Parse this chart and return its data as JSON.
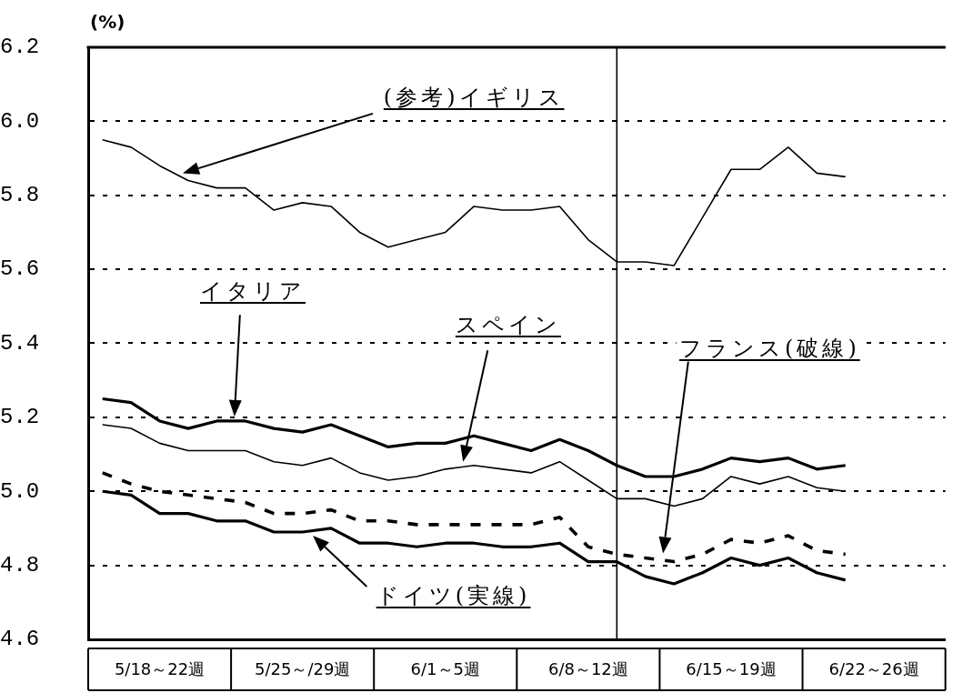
{
  "chart_data": {
    "type": "line",
    "ylabel": "(%)",
    "categories": [
      null,
      null,
      "5/18～22週",
      null,
      null,
      null,
      null,
      "5/25～/29週",
      null,
      null,
      null,
      null,
      "6/1～5週",
      null,
      null,
      null,
      null,
      "6/8～12週",
      null,
      null,
      null,
      null,
      "6/15～19週",
      null,
      null,
      null,
      null,
      "6/22～26週",
      null,
      null
    ],
    "ylim": [
      4.6,
      6.2
    ],
    "yticks": [
      {
        "value": 4.6,
        "label": "4.6"
      },
      {
        "value": 4.8,
        "label": "4.8"
      },
      {
        "value": 5,
        "label": "5.0"
      },
      {
        "value": 5.2,
        "label": "5.2"
      },
      {
        "value": 5.4,
        "label": "5.4"
      },
      {
        "value": 5.6,
        "label": "5.6"
      },
      {
        "value": 5.8,
        "label": "5.8"
      },
      {
        "value": 6,
        "label": "6.0"
      },
      {
        "value": 6.2,
        "label": "6.2"
      }
    ],
    "grid": "y",
    "marker": "none",
    "series": [
      {
        "name": "(参考)イギリス",
        "color": "#000000",
        "values": [
          5.95,
          5.93,
          5.88,
          5.84,
          5.82,
          5.82,
          5.76,
          5.78,
          5.77,
          5.7,
          5.66,
          5.68,
          5.7,
          5.77,
          5.76,
          5.76,
          5.77,
          5.68,
          5.62,
          5.62,
          5.61,
          5.74,
          5.87,
          5.87,
          5.93,
          5.86,
          5.85,
          null,
          null,
          null
        ]
      },
      {
        "name": "イタリア",
        "color": "#000000",
        "values": [
          5.25,
          5.24,
          5.19,
          5.17,
          5.19,
          5.19,
          5.17,
          5.16,
          5.18,
          5.15,
          5.12,
          5.13,
          5.13,
          5.15,
          5.13,
          5.11,
          5.14,
          5.11,
          5.07,
          5.04,
          5.04,
          5.06,
          5.09,
          5.08,
          5.09,
          5.06,
          5.07,
          null,
          null,
          null
        ]
      },
      {
        "name": "スペイン",
        "color": "#000000",
        "values": [
          5.18,
          5.17,
          5.13,
          5.11,
          5.11,
          5.11,
          5.08,
          5.07,
          5.09,
          5.05,
          5.03,
          5.04,
          5.06,
          5.07,
          5.06,
          5.05,
          5.08,
          5.03,
          4.98,
          4.98,
          4.96,
          4.98,
          5.04,
          5.02,
          5.04,
          5.01,
          5.0,
          null,
          null,
          null
        ]
      },
      {
        "name": "フランス(破線)",
        "color": "#000000",
        "line_style": "dashed",
        "values": [
          5.05,
          5.02,
          5.0,
          4.99,
          4.98,
          4.97,
          4.94,
          4.94,
          4.95,
          4.92,
          4.92,
          4.91,
          4.91,
          4.91,
          4.91,
          4.91,
          4.93,
          4.85,
          4.83,
          4.82,
          4.81,
          4.83,
          4.87,
          4.86,
          4.88,
          4.84,
          4.83,
          null,
          null,
          null
        ]
      },
      {
        "name": "ドイツ(実線)",
        "color": "#000000",
        "values": [
          5.0,
          4.99,
          4.94,
          4.94,
          4.92,
          4.92,
          4.89,
          4.89,
          4.9,
          4.86,
          4.86,
          4.85,
          4.86,
          4.86,
          4.85,
          4.85,
          4.86,
          4.81,
          4.81,
          4.77,
          4.75,
          4.78,
          4.82,
          4.8,
          4.82,
          4.78,
          4.76,
          null,
          null,
          null
        ]
      }
    ]
  }
}
